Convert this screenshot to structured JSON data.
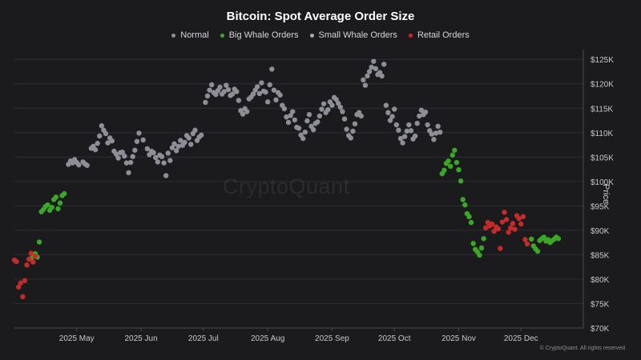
{
  "chart_data": {
    "type": "scatter",
    "title": "Bitcoin: Spot Average Order Size",
    "ylabel": "Price",
    "xlabel": "",
    "ylim": [
      70000,
      127000
    ],
    "xlim": [
      "2025-04-01",
      "2025-12-31"
    ],
    "y_ticks": [
      "$70K",
      "$75K",
      "$80K",
      "$85K",
      "$90K",
      "$95K",
      "$100K",
      "$105K",
      "$110K",
      "$115K",
      "$120K",
      "$125K"
    ],
    "y_tick_values": [
      70000,
      75000,
      80000,
      85000,
      90000,
      95000,
      100000,
      105000,
      110000,
      115000,
      120000,
      125000
    ],
    "x_ticks": [
      "2025 May",
      "2025 Jun",
      "2025 Jul",
      "2025 Aug",
      "2025 Sep",
      "2025 Oct",
      "2025 Nov",
      "2025 Dec"
    ],
    "x_tick_dates": [
      "2025-05-01",
      "2025-06-01",
      "2025-07-01",
      "2025-08-01",
      "2025-09-01",
      "2025-10-01",
      "2025-11-01",
      "2025-12-01"
    ],
    "grid": "horizontal",
    "legend_position": "top-center",
    "series": [
      {
        "name": "Normal",
        "color": "#8e8e96",
        "points": [
          [
            "2025-04-27",
            103500
          ],
          [
            "2025-04-28",
            104200
          ],
          [
            "2025-04-29",
            103800
          ],
          [
            "2025-04-30",
            104500
          ],
          [
            "2025-05-01",
            103900
          ],
          [
            "2025-05-02",
            103400
          ],
          [
            "2025-05-04",
            104000
          ],
          [
            "2025-05-05",
            103600
          ],
          [
            "2025-05-06",
            103300
          ],
          [
            "2025-05-08",
            106800
          ],
          [
            "2025-05-09",
            107200
          ],
          [
            "2025-05-10",
            106500
          ],
          [
            "2025-05-11",
            107800
          ],
          [
            "2025-05-12",
            109300
          ],
          [
            "2025-05-13",
            111400
          ],
          [
            "2025-05-14",
            110500
          ],
          [
            "2025-05-15",
            109800
          ],
          [
            "2025-05-16",
            107900
          ],
          [
            "2025-05-17",
            108900
          ],
          [
            "2025-05-18",
            108300
          ],
          [
            "2025-05-19",
            106200
          ],
          [
            "2025-05-20",
            105600
          ],
          [
            "2025-05-21",
            104800
          ],
          [
            "2025-05-22",
            105900
          ],
          [
            "2025-05-23",
            106000
          ],
          [
            "2025-05-24",
            105200
          ],
          [
            "2025-05-25",
            103800
          ],
          [
            "2025-05-26",
            101800
          ],
          [
            "2025-05-27",
            103900
          ],
          [
            "2025-05-28",
            105100
          ],
          [
            "2025-05-29",
            106400
          ],
          [
            "2025-05-30",
            108200
          ],
          [
            "2025-05-31",
            109900
          ],
          [
            "2025-06-02",
            108500
          ],
          [
            "2025-06-04",
            106700
          ],
          [
            "2025-06-05",
            105500
          ],
          [
            "2025-06-06",
            106200
          ],
          [
            "2025-06-07",
            105900
          ],
          [
            "2025-06-08",
            104900
          ],
          [
            "2025-06-09",
            104000
          ],
          [
            "2025-06-10",
            105400
          ],
          [
            "2025-06-11",
            105100
          ],
          [
            "2025-06-12",
            103800
          ],
          [
            "2025-06-13",
            101200
          ],
          [
            "2025-06-14",
            105800
          ],
          [
            "2025-06-15",
            104300
          ],
          [
            "2025-06-16",
            106900
          ],
          [
            "2025-06-17",
            107700
          ],
          [
            "2025-06-18",
            106300
          ],
          [
            "2025-06-19",
            107200
          ],
          [
            "2025-06-20",
            108400
          ],
          [
            "2025-06-21",
            107400
          ],
          [
            "2025-06-22",
            108000
          ],
          [
            "2025-06-23",
            109400
          ],
          [
            "2025-06-24",
            108900
          ],
          [
            "2025-06-25",
            107600
          ],
          [
            "2025-06-26",
            109800
          ],
          [
            "2025-06-27",
            110500
          ],
          [
            "2025-06-28",
            108400
          ],
          [
            "2025-06-29",
            109100
          ],
          [
            "2025-06-30",
            109500
          ],
          [
            "2025-07-02",
            116200
          ],
          [
            "2025-07-03",
            117500
          ],
          [
            "2025-07-04",
            118700
          ],
          [
            "2025-07-05",
            119800
          ],
          [
            "2025-07-06",
            118200
          ],
          [
            "2025-07-07",
            117800
          ],
          [
            "2025-07-08",
            118600
          ],
          [
            "2025-07-09",
            119300
          ],
          [
            "2025-07-10",
            117900
          ],
          [
            "2025-07-11",
            118400
          ],
          [
            "2025-07-12",
            119700
          ],
          [
            "2025-07-13",
            118800
          ],
          [
            "2025-07-14",
            117600
          ],
          [
            "2025-07-15",
            117900
          ],
          [
            "2025-07-16",
            118900
          ],
          [
            "2025-07-17",
            118400
          ],
          [
            "2025-07-18",
            116600
          ],
          [
            "2025-07-19",
            114500
          ],
          [
            "2025-07-20",
            113800
          ],
          [
            "2025-07-21",
            114900
          ],
          [
            "2025-07-22",
            114300
          ],
          [
            "2025-07-23",
            116900
          ],
          [
            "2025-07-24",
            117300
          ],
          [
            "2025-07-25",
            117900
          ],
          [
            "2025-07-26",
            118700
          ],
          [
            "2025-07-27",
            119400
          ],
          [
            "2025-07-28",
            118000
          ],
          [
            "2025-07-29",
            120200
          ],
          [
            "2025-07-30",
            118500
          ],
          [
            "2025-07-31",
            118300
          ],
          [
            "2025-08-01",
            116300
          ],
          [
            "2025-08-02",
            119800
          ],
          [
            "2025-08-03",
            123000
          ],
          [
            "2025-08-04",
            118700
          ],
          [
            "2025-08-05",
            116700
          ],
          [
            "2025-08-06",
            118200
          ],
          [
            "2025-08-07",
            117700
          ],
          [
            "2025-08-08",
            115600
          ],
          [
            "2025-08-09",
            114900
          ],
          [
            "2025-08-10",
            113200
          ],
          [
            "2025-08-11",
            112100
          ],
          [
            "2025-08-12",
            113500
          ],
          [
            "2025-08-13",
            114300
          ],
          [
            "2025-08-14",
            112600
          ],
          [
            "2025-08-15",
            111100
          ],
          [
            "2025-08-16",
            110900
          ],
          [
            "2025-08-17",
            109500
          ],
          [
            "2025-08-18",
            108800
          ],
          [
            "2025-08-19",
            110100
          ],
          [
            "2025-08-20",
            112400
          ],
          [
            "2025-08-21",
            113700
          ],
          [
            "2025-08-22",
            111300
          ],
          [
            "2025-08-23",
            110600
          ],
          [
            "2025-08-24",
            111900
          ],
          [
            "2025-08-25",
            112200
          ],
          [
            "2025-08-26",
            113400
          ],
          [
            "2025-08-27",
            114800
          ],
          [
            "2025-08-28",
            115900
          ],
          [
            "2025-08-29",
            114100
          ],
          [
            "2025-08-30",
            114700
          ],
          [
            "2025-08-31",
            116300
          ],
          [
            "2025-09-01",
            115600
          ],
          [
            "2025-09-02",
            117200
          ],
          [
            "2025-09-03",
            116800
          ],
          [
            "2025-09-04",
            116000
          ],
          [
            "2025-09-05",
            115200
          ],
          [
            "2025-09-06",
            114300
          ],
          [
            "2025-09-07",
            112800
          ],
          [
            "2025-09-08",
            110700
          ],
          [
            "2025-09-09",
            109400
          ],
          [
            "2025-09-10",
            108900
          ],
          [
            "2025-09-11",
            110300
          ],
          [
            "2025-09-12",
            111800
          ],
          [
            "2025-09-13",
            113700
          ],
          [
            "2025-09-14",
            114100
          ],
          [
            "2025-09-15",
            113400
          ],
          [
            "2025-09-16",
            120800
          ],
          [
            "2025-09-17",
            119700
          ],
          [
            "2025-09-18",
            121600
          ],
          [
            "2025-09-19",
            122500
          ],
          [
            "2025-09-20",
            123400
          ],
          [
            "2025-09-21",
            124600
          ],
          [
            "2025-09-22",
            123100
          ],
          [
            "2025-09-23",
            121900
          ],
          [
            "2025-09-24",
            122300
          ],
          [
            "2025-09-25",
            121600
          ],
          [
            "2025-09-26",
            124000
          ],
          [
            "2025-09-27",
            115600
          ],
          [
            "2025-09-28",
            114100
          ],
          [
            "2025-09-29",
            112500
          ],
          [
            "2025-09-30",
            113300
          ],
          [
            "2025-10-01",
            114800
          ],
          [
            "2025-10-02",
            111600
          ],
          [
            "2025-10-03",
            110500
          ],
          [
            "2025-10-04",
            108800
          ],
          [
            "2025-10-05",
            107900
          ],
          [
            "2025-10-06",
            109200
          ],
          [
            "2025-10-07",
            110300
          ],
          [
            "2025-10-08",
            111600
          ],
          [
            "2025-10-09",
            110400
          ],
          [
            "2025-10-10",
            108700
          ],
          [
            "2025-10-11",
            109300
          ],
          [
            "2025-10-12",
            111900
          ],
          [
            "2025-10-13",
            113400
          ],
          [
            "2025-10-14",
            114600
          ],
          [
            "2025-10-15",
            113700
          ],
          [
            "2025-10-16",
            114200
          ],
          [
            "2025-10-17",
            111600
          ],
          [
            "2025-10-18",
            110400
          ],
          [
            "2025-10-19",
            109700
          ],
          [
            "2025-10-20",
            108600
          ],
          [
            "2025-10-21",
            109900
          ],
          [
            "2025-10-22",
            111300
          ],
          [
            "2025-10-23",
            110100
          ]
        ]
      },
      {
        "name": "Big Whale Orders",
        "color": "#3aa826",
        "points": [
          [
            "2025-04-09",
            84200
          ],
          [
            "2025-04-10",
            84900
          ],
          [
            "2025-04-11",
            85200
          ],
          [
            "2025-04-12",
            84500
          ],
          [
            "2025-04-13",
            87600
          ],
          [
            "2025-04-14",
            93800
          ],
          [
            "2025-04-15",
            94300
          ],
          [
            "2025-04-16",
            94900
          ],
          [
            "2025-04-17",
            95200
          ],
          [
            "2025-04-18",
            94100
          ],
          [
            "2025-04-19",
            94700
          ],
          [
            "2025-04-20",
            96300
          ],
          [
            "2025-04-21",
            96800
          ],
          [
            "2025-04-22",
            94400
          ],
          [
            "2025-04-23",
            95600
          ],
          [
            "2025-04-24",
            97100
          ],
          [
            "2025-04-25",
            97500
          ],
          [
            "2025-10-24",
            101600
          ],
          [
            "2025-10-25",
            102300
          ],
          [
            "2025-10-26",
            103700
          ],
          [
            "2025-10-27",
            104200
          ],
          [
            "2025-10-28",
            103100
          ],
          [
            "2025-10-29",
            105400
          ],
          [
            "2025-10-30",
            106400
          ],
          [
            "2025-10-31",
            103900
          ],
          [
            "2025-11-01",
            102400
          ],
          [
            "2025-11-02",
            100100
          ],
          [
            "2025-11-03",
            96300
          ],
          [
            "2025-11-04",
            95200
          ],
          [
            "2025-11-05",
            93400
          ],
          [
            "2025-11-06",
            92800
          ],
          [
            "2025-11-07",
            91600
          ],
          [
            "2025-11-08",
            87300
          ],
          [
            "2025-11-09",
            86100
          ],
          [
            "2025-11-10",
            85600
          ],
          [
            "2025-11-11",
            84900
          ],
          [
            "2025-11-12",
            86400
          ],
          [
            "2025-11-13",
            88300
          ],
          [
            "2025-12-06",
            88200
          ],
          [
            "2025-12-07",
            86800
          ],
          [
            "2025-12-08",
            86200
          ],
          [
            "2025-12-09",
            85700
          ],
          [
            "2025-12-10",
            87900
          ],
          [
            "2025-12-11",
            88300
          ],
          [
            "2025-12-12",
            88600
          ],
          [
            "2025-12-13",
            87800
          ],
          [
            "2025-12-14",
            88100
          ],
          [
            "2025-12-15",
            87500
          ],
          [
            "2025-12-16",
            87900
          ],
          [
            "2025-12-17",
            88200
          ],
          [
            "2025-12-18",
            88600
          ],
          [
            "2025-12-19",
            88300
          ]
        ]
      },
      {
        "name": "Small Whale Orders",
        "color": "#a8a8ae",
        "points": []
      },
      {
        "name": "Retail Orders",
        "color": "#c62b2b",
        "points": [
          [
            "2025-04-01",
            83900
          ],
          [
            "2025-04-02",
            83600
          ],
          [
            "2025-04-03",
            78400
          ],
          [
            "2025-04-04",
            79200
          ],
          [
            "2025-04-05",
            76400
          ],
          [
            "2025-04-06",
            79700
          ],
          [
            "2025-04-07",
            82900
          ],
          [
            "2025-04-08",
            84100
          ],
          [
            "2025-04-09",
            85300
          ],
          [
            "2025-04-10",
            83500
          ],
          [
            "2025-04-11",
            84700
          ],
          [
            "2025-11-14",
            90500
          ],
          [
            "2025-11-15",
            91600
          ],
          [
            "2025-11-16",
            90900
          ],
          [
            "2025-11-17",
            91300
          ],
          [
            "2025-11-18",
            89800
          ],
          [
            "2025-11-19",
            90700
          ],
          [
            "2025-11-20",
            90300
          ],
          [
            "2025-11-21",
            86300
          ],
          [
            "2025-11-22",
            91700
          ],
          [
            "2025-11-23",
            93700
          ],
          [
            "2025-11-24",
            92200
          ],
          [
            "2025-11-25",
            89600
          ],
          [
            "2025-11-26",
            90500
          ],
          [
            "2025-11-27",
            91400
          ],
          [
            "2025-11-28",
            90200
          ],
          [
            "2025-11-29",
            93000
          ],
          [
            "2025-11-30",
            92400
          ],
          [
            "2025-12-01",
            91300
          ],
          [
            "2025-12-02",
            92800
          ],
          [
            "2025-12-03",
            88100
          ],
          [
            "2025-12-04",
            87200
          ]
        ]
      }
    ]
  },
  "watermark": "CryptoQuant",
  "copyright": "© CryptoQuant. All rights reserved"
}
